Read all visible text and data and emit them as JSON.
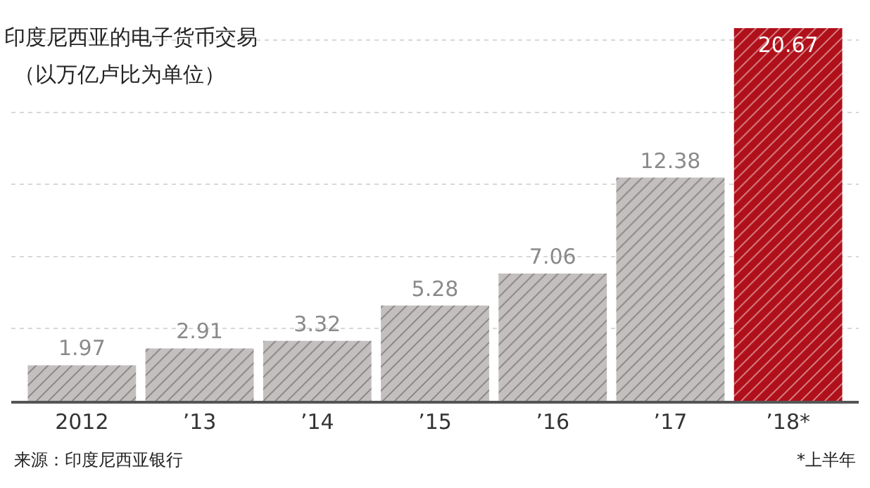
{
  "chart_data": {
    "type": "bar",
    "title": "印度尼西亚的电子货币交易",
    "subtitle": "（以万亿卢比为单位）",
    "categories": [
      "2012",
      "’13",
      "’14",
      "’15",
      "’16",
      "’17",
      "’18*"
    ],
    "values": [
      1.97,
      2.91,
      3.32,
      5.28,
      7.06,
      12.38,
      20.67
    ],
    "colors": [
      "#c4bfbf",
      "#c4bfbf",
      "#c4bfbf",
      "#c4bfbf",
      "#c4bfbf",
      "#c4bfbf",
      "#b0101a"
    ],
    "data_labels": true,
    "yticks": [
      {
        "value": 0,
        "label": null
      },
      {
        "value": 4,
        "label": null
      },
      {
        "value": 8,
        "label": null
      },
      {
        "value": 12,
        "label": null
      },
      {
        "value": 16,
        "label": null
      },
      {
        "value": 20,
        "label": null
      }
    ],
    "grid": "y",
    "tick_labels": "x",
    "annotations": [
      "来源：印度尼西亚银行",
      "*上半年"
    ]
  }
}
